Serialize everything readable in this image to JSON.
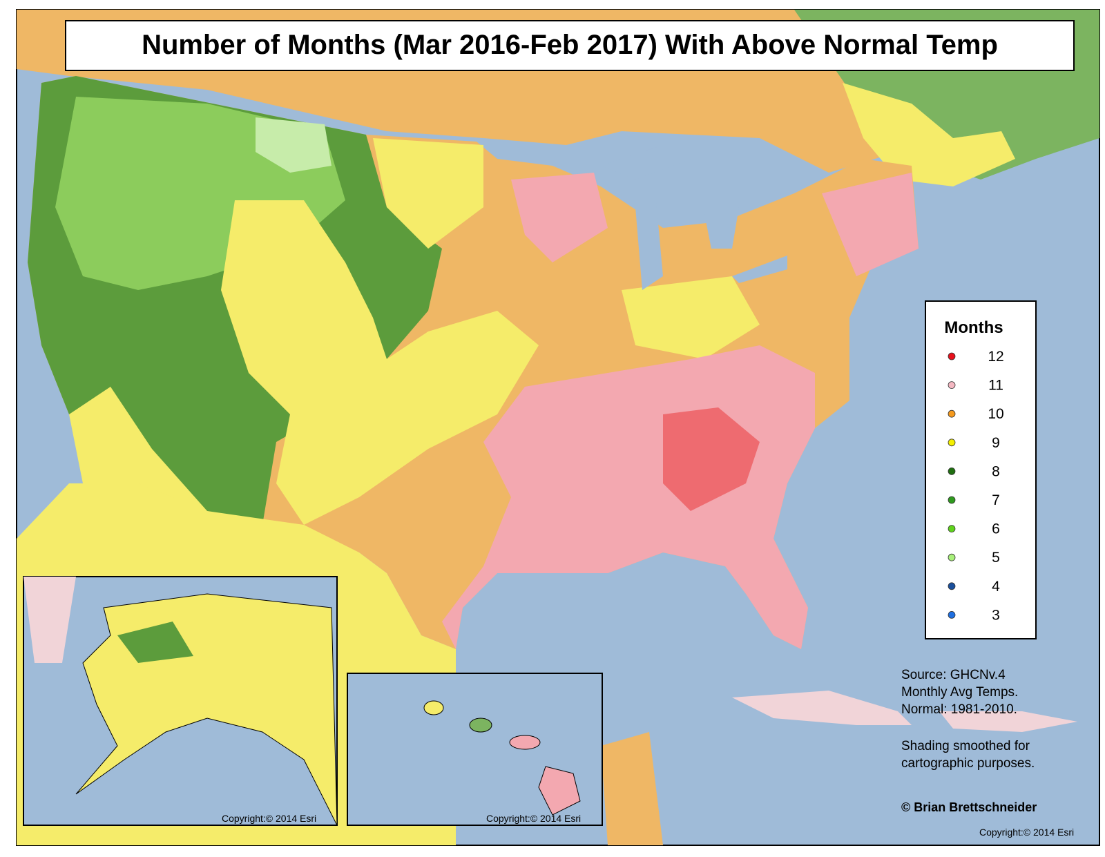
{
  "title": "Number of Months (Mar 2016-Feb 2017) With Above Normal Temp",
  "legend": {
    "title": "Months",
    "items": [
      {
        "label": 12,
        "color": "#e8101c"
      },
      {
        "label": 11,
        "color": "#f4b8c2"
      },
      {
        "label": 10,
        "color": "#f59a1e"
      },
      {
        "label": 9,
        "color": "#f5f000"
      },
      {
        "label": 8,
        "color": "#1f6f10"
      },
      {
        "label": 7,
        "color": "#2f9a1e"
      },
      {
        "label": 6,
        "color": "#5fd31c"
      },
      {
        "label": 5,
        "color": "#a8f07a"
      },
      {
        "label": 4,
        "color": "#1a4f9c"
      },
      {
        "label": 3,
        "color": "#1f6fe0"
      }
    ]
  },
  "notes": [
    "Source: GHCNv.4",
    "Monthly Avg Temps.",
    "Normal: 1981-2010.",
    "Shading smoothed for",
    "cartographic purposes."
  ],
  "credit": "© Brian Brettschneider",
  "copyrights": [
    "Copyright:© 2014 Esri",
    "Copyright:© 2014 Esri",
    "Copyright:© 2014 Esri"
  ]
}
